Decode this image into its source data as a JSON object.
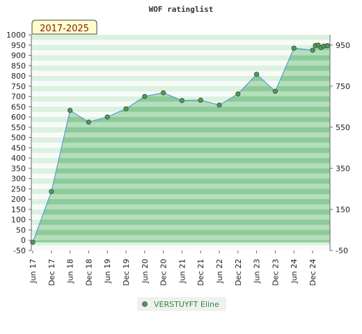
{
  "chart_data": {
    "type": "area",
    "title": "WOF ratinglist",
    "period_label": "2017-2025",
    "xlabel": "",
    "ylabel": "",
    "ylim": [
      -50,
      1000
    ],
    "y_ticks_left": [
      -50,
      0,
      50,
      100,
      150,
      200,
      250,
      300,
      350,
      400,
      450,
      500,
      550,
      600,
      650,
      700,
      750,
      800,
      850,
      900,
      950,
      1000
    ],
    "y_ticks_right": [
      -50,
      150,
      350,
      550,
      750,
      950
    ],
    "x_ticks": [
      "Jun 17",
      "Dec 17",
      "Jun 18",
      "Dec 18",
      "Jun 19",
      "Dec 19",
      "Jun 20",
      "Dec 20",
      "Jun 21",
      "Dec 21",
      "Jun 22",
      "Dec 22",
      "Jun 23",
      "Dec 23",
      "Jun 24",
      "Dec 24"
    ],
    "grid": false,
    "legend_position": "bottom",
    "colors": {
      "line": "#5b9bd5",
      "marker": "#4f9a5a",
      "fill": "#7cc48a",
      "legend_text": "#2e8b3a",
      "period_text": "#8b1a1a",
      "period_bg": "#ffffcc"
    },
    "series": [
      {
        "name": "VERSTUYFT Eline",
        "x": [
          0,
          1,
          2,
          3,
          4,
          5,
          6,
          7,
          8,
          9,
          10,
          11,
          12,
          13,
          14,
          15,
          15.15,
          15.3,
          15.45,
          15.6,
          15.8
        ],
        "y": [
          -10,
          237,
          632,
          575,
          600,
          640,
          700,
          718,
          680,
          682,
          658,
          712,
          808,
          725,
          935,
          925,
          948,
          950,
          938,
          945,
          947
        ]
      }
    ]
  }
}
